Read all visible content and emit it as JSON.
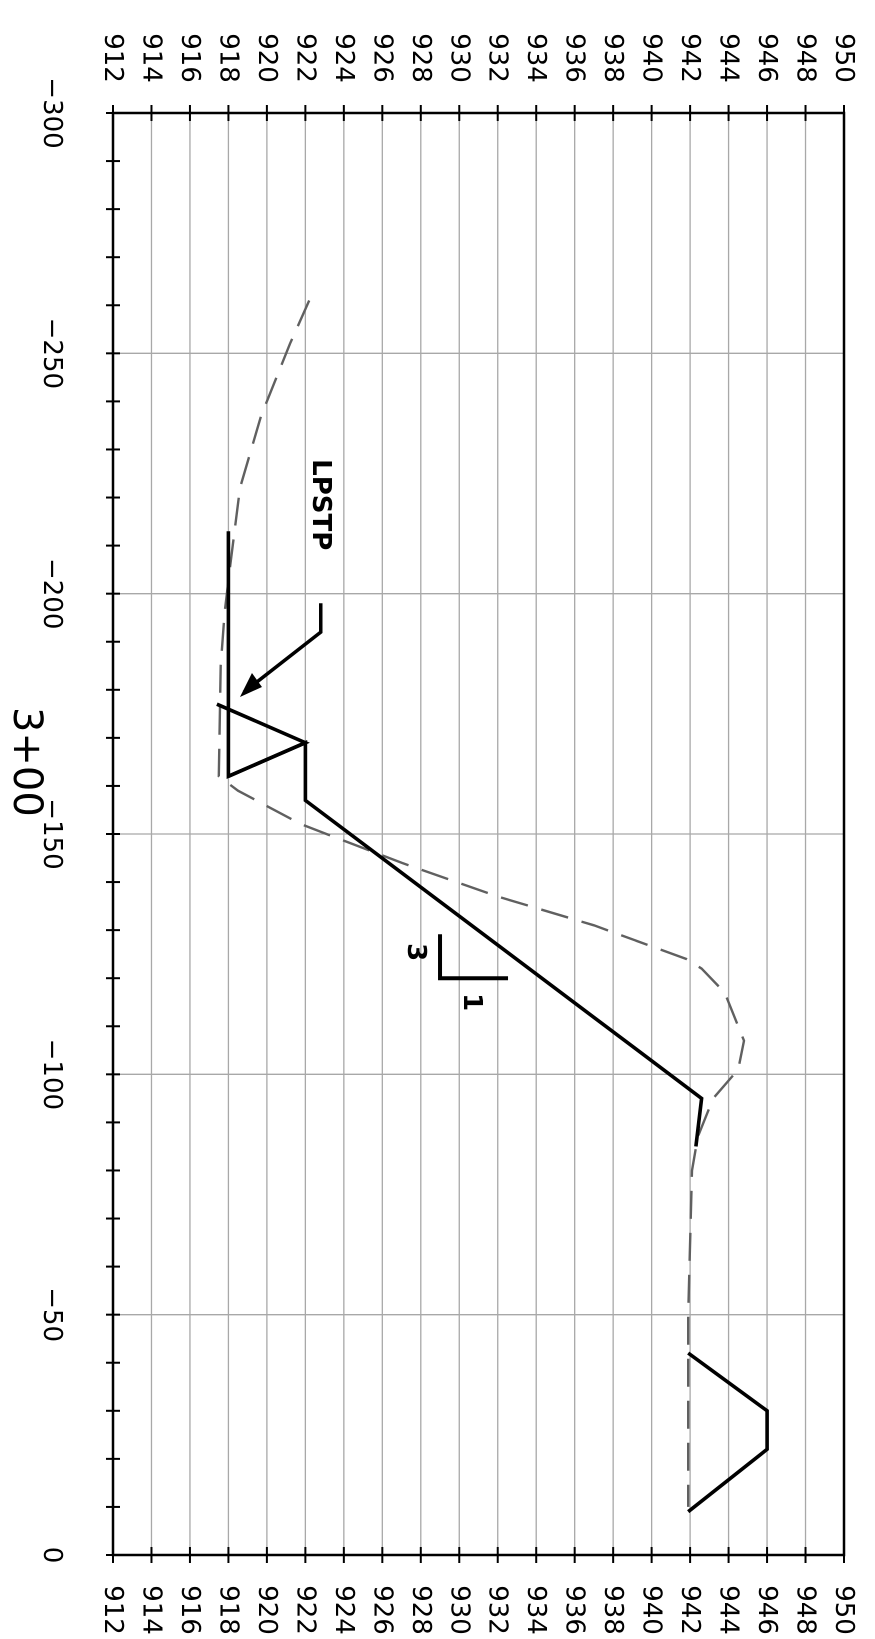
{
  "chart_data": {
    "type": "line",
    "orientation": "rotated-90-clockwise",
    "station_label": "3+00",
    "offset_axis": {
      "range": [
        -300,
        0
      ],
      "major_ticks": [
        -300,
        -250,
        -200,
        -150,
        -100,
        -50,
        0
      ],
      "major_tick_labels": [
        "−300",
        "−250",
        "−200",
        "−150",
        "−100",
        "−50",
        "0"
      ],
      "minor_step": 10
    },
    "elevation_axis": {
      "range": [
        912,
        950
      ],
      "ticks": [
        912,
        914,
        916,
        918,
        920,
        922,
        924,
        926,
        928,
        930,
        932,
        934,
        936,
        938,
        940,
        942,
        944,
        946,
        948,
        950
      ],
      "tick_labels": [
        "912",
        "914",
        "916",
        "918",
        "920",
        "922",
        "924",
        "926",
        "928",
        "930",
        "932",
        "934",
        "936",
        "938",
        "940",
        "942",
        "944",
        "946",
        "948",
        "950"
      ]
    },
    "grid": true,
    "series": [
      {
        "style": "dashed",
        "color": "#606060",
        "points": [
          [
            -261,
            922.2
          ],
          [
            -252,
            921.2
          ],
          [
            -237,
            919.7
          ],
          [
            -222,
            918.6
          ],
          [
            -206,
            918.1
          ],
          [
            -196,
            917.8
          ],
          [
            -185,
            917.6
          ],
          [
            -162,
            917.5
          ],
          [
            -159,
            918.5
          ],
          [
            -152,
            921.8
          ],
          [
            -144,
            927.0
          ],
          [
            -137,
            932.0
          ],
          [
            -131,
            937.0
          ],
          [
            -124,
            941.8
          ],
          [
            -122,
            942.6
          ],
          [
            -117,
            943.8
          ],
          [
            -107,
            944.8
          ],
          [
            -101,
            944.5
          ],
          [
            -95,
            943.2
          ],
          [
            -87,
            942.4
          ],
          [
            -80,
            942.1
          ],
          [
            -50,
            941.9
          ],
          [
            -25,
            941.9
          ],
          [
            -10,
            941.9
          ]
        ]
      },
      {
        "style": "solid",
        "color": "#000000",
        "points": [
          [
            -213,
            918.0
          ],
          [
            -162,
            918.0
          ],
          [
            -169,
            922.0
          ],
          [
            -157,
            922.0
          ],
          [
            -95,
            942.6
          ],
          [
            -85,
            942.3
          ]
        ]
      },
      {
        "style": "solid",
        "color": "#000000",
        "points": [
          [
            -177,
            917.4
          ],
          [
            -169,
            922.0
          ],
          [
            -162,
            918.0
          ]
        ]
      },
      {
        "style": "solid",
        "color": "#000000",
        "points": [
          [
            -42,
            941.9
          ],
          [
            -30,
            946.0
          ],
          [
            -22,
            946.0
          ],
          [
            -9,
            941.9
          ]
        ]
      }
    ],
    "slope_symbol": {
      "rise": "1",
      "run": "3",
      "vertex": [
        -120,
        929.0
      ]
    },
    "annotation": {
      "text": "LPSTP",
      "leader": [
        [
          -198,
          922.8
        ],
        [
          -192,
          922.8
        ],
        [
          -192,
          922.8
        ],
        [
          -182,
          922.8
        ]
      ],
      "arrow_path": [
        [
          -192,
          922.8
        ],
        [
          -181,
          918.6
        ]
      ],
      "text_position": [
        -210,
        922.8
      ]
    }
  }
}
